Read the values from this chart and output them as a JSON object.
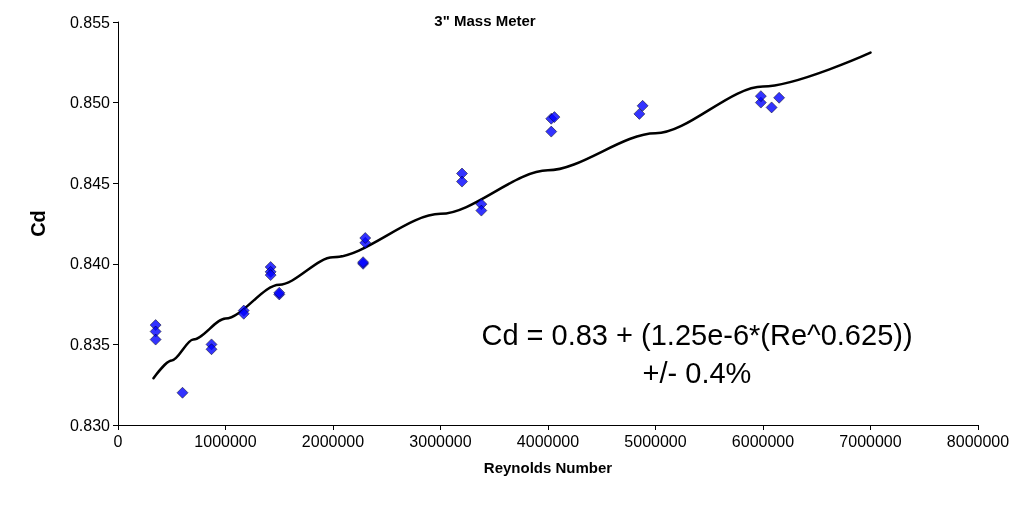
{
  "chart_data": {
    "type": "scatter",
    "title": "3\" Mass Meter",
    "xlabel": "Reynolds Number",
    "ylabel": "Cd",
    "xlim": [
      0,
      8000000
    ],
    "xticks": [
      0,
      1000000,
      2000000,
      3000000,
      4000000,
      5000000,
      6000000,
      7000000,
      8000000
    ],
    "ylim": [
      0.83,
      0.855
    ],
    "yticks": [
      {
        "value": 0.83,
        "label": "0.830"
      },
      {
        "value": 0.835,
        "label": "0.835"
      },
      {
        "value": 0.84,
        "label": "0.840"
      },
      {
        "value": 0.845,
        "label": "0.845"
      },
      {
        "value": 0.85,
        "label": "0.850"
      },
      {
        "value": 0.855,
        "label": "0.855"
      }
    ],
    "grid": false,
    "series": [
      {
        "color": "#0000ff",
        "marker": "diamond",
        "x": [
          350000,
          350000,
          350000,
          600000,
          870000,
          870000,
          1170000,
          1170000,
          1420000,
          1420000,
          1420000,
          1500000,
          1500000,
          2280000,
          2280000,
          2300000,
          2300000,
          3200000,
          3200000,
          3380000,
          3380000,
          4030000,
          4030000,
          4060000,
          4850000,
          4880000,
          5980000,
          5980000,
          6080000,
          6150000
        ],
        "values": [
          0.8362,
          0.8358,
          0.8353,
          0.832,
          0.835,
          0.8347,
          0.8371,
          0.8369,
          0.8398,
          0.8395,
          0.8393,
          0.8381,
          0.8382,
          0.84,
          0.8401,
          0.8413,
          0.8416,
          0.8456,
          0.8451,
          0.8437,
          0.8433,
          0.849,
          0.8482,
          0.8491,
          0.8493,
          0.8498,
          0.85,
          0.8504,
          0.8497,
          0.8503
        ]
      },
      {
        "type": "line",
        "color": "#000000",
        "marker": "none",
        "line_style": "solid",
        "x": [
          330000,
          500000,
          700000,
          1000000,
          1500000,
          2000000,
          3000000,
          4000000,
          5000000,
          6000000,
          7000000
        ],
        "values": [
          0.8329,
          0.834,
          0.8353,
          0.8366,
          0.8387,
          0.8404,
          0.8431,
          0.8458,
          0.8481,
          0.851,
          0.8531
        ]
      }
    ],
    "annotations": [
      "Cd = 0.83 + (1.25e-6*(Re^0.625))",
      "+/- 0.4%"
    ]
  }
}
